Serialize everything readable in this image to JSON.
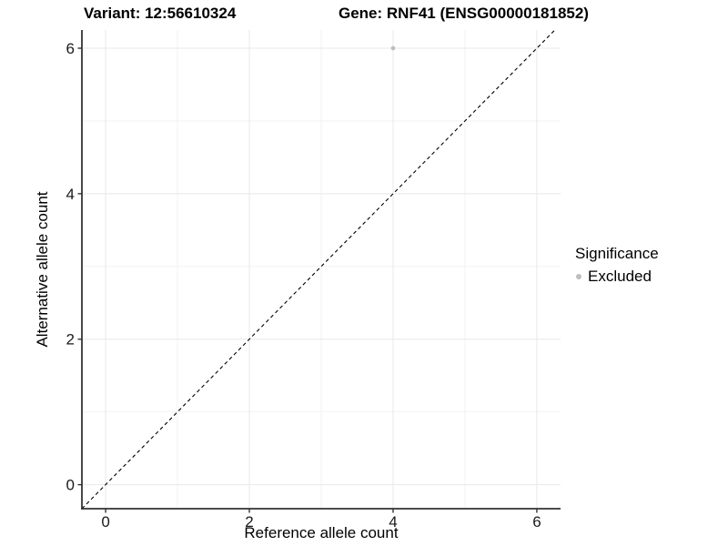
{
  "chart_data": {
    "type": "scatter",
    "title_left": "Variant: 12:56610324",
    "title_right": "Gene: RNF41 (ENSG00000181852)",
    "xlabel": "Reference allele count",
    "ylabel": "Alternative allele count",
    "xlim": [
      -0.33,
      6.33
    ],
    "ylim": [
      -0.33,
      6.25
    ],
    "xticks": [
      0,
      2,
      4,
      6
    ],
    "yticks": [
      0,
      2,
      4,
      6
    ],
    "minor_xticks": [
      1,
      3,
      5
    ],
    "minor_yticks": [
      1,
      3,
      5
    ],
    "grid": "on",
    "points": [
      {
        "x": 4,
        "y": 6,
        "significance": "Excluded"
      }
    ],
    "reference_line": {
      "kind": "identity",
      "slope": 1,
      "intercept": 0,
      "style": "dashed",
      "color": "#000000"
    },
    "legend": {
      "title": "Significance",
      "position": "right",
      "entries": [
        {
          "label": "Excluded",
          "color": "#BEBEBE"
        }
      ]
    },
    "colors": {
      "point": "#BEBEBE",
      "grid_major": "#E8E8E8",
      "grid_minor": "#F2F2F2",
      "axis_line": "#333333",
      "tick_label": "#1A1A1A",
      "text": "#000000",
      "background": "#FFFFFF"
    }
  }
}
